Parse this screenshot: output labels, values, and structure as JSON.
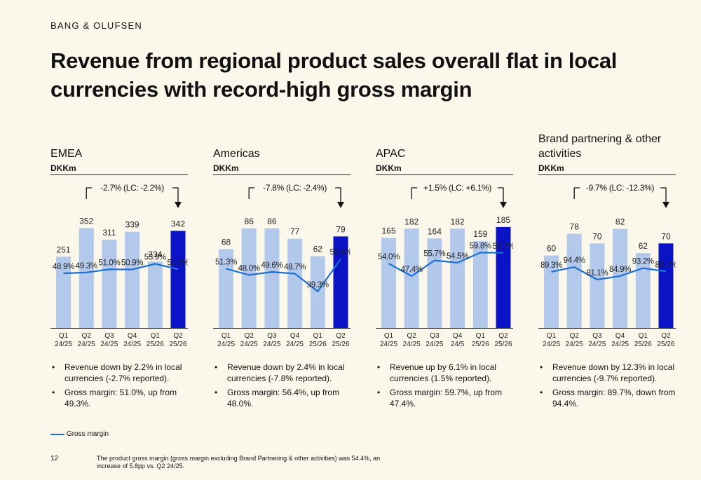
{
  "brand": "BANG & OLUFSEN",
  "title": "Revenue from regional product sales overall flat in local currencies with record-high gross margin",
  "colors": {
    "background": "#FBF7EA",
    "bar_light": "#B3C9EC",
    "bar_dark": "#0A14C4",
    "margin_line": "#1E6FD2"
  },
  "chart_data": [
    {
      "type": "bar",
      "title": "EMEA",
      "unit": "DKKm",
      "categories": [
        "Q1 24/25",
        "Q2 24/25",
        "Q3 24/25",
        "Q4 24/25",
        "Q1 25/26",
        "Q2 25/26"
      ],
      "series": [
        {
          "name": "Revenue",
          "values": [
            251,
            352,
            311,
            339,
            234,
            342
          ]
        },
        {
          "name": "Gross margin",
          "values": [
            48.9,
            49.3,
            51.0,
            50.9,
            53.9,
            51.0
          ]
        }
      ],
      "value_labels": [
        "251",
        "352",
        "311",
        "339",
        "234",
        "342"
      ],
      "margin_labels": [
        "48.9%",
        "49.3%",
        "51.0%",
        "50.9%",
        "53.9%",
        "51.0%"
      ],
      "growth_label": "-2.7% (LC: -2.2%)",
      "highlight_index": 5,
      "ylim": [
        0,
        400
      ],
      "margin_range": [
        20,
        80
      ],
      "bullets": [
        "Revenue down by 2.2% in local currencies (-2.7% reported).",
        "Gross margin: 51.0%, up from 49.3%."
      ]
    },
    {
      "type": "bar",
      "title": "Americas",
      "unit": "DKKm",
      "categories": [
        "Q1 24/25",
        "Q2 24/25",
        "Q3 24/25",
        "Q4 24/25",
        "Q1 25/26",
        "Q2 25/26"
      ],
      "series": [
        {
          "name": "Revenue",
          "values": [
            68,
            86,
            86,
            77,
            62,
            79
          ]
        },
        {
          "name": "Gross margin",
          "values": [
            51.3,
            48.0,
            49.6,
            48.7,
            39.3,
            56.4
          ]
        }
      ],
      "value_labels": [
        "68",
        "86",
        "86",
        "77",
        "62",
        "79"
      ],
      "margin_labels": [
        "51.3%",
        "48.0%",
        "49.6%",
        "48.7%",
        "39.3%",
        "56.4%"
      ],
      "growth_label": "-7.8% (LC: -2.4%)",
      "highlight_index": 5,
      "ylim": [
        0,
        98
      ],
      "margin_range": [
        20,
        80
      ],
      "bullets": [
        "Revenue down by 2.4% in local currencies (-7.8% reported).",
        "Gross margin: 56.4%, up from 48.0%."
      ]
    },
    {
      "type": "bar",
      "title": "APAC",
      "unit": "DKKm",
      "categories": [
        "Q1 24/25",
        "Q2 24/25",
        "Q3 24/25",
        "Q4 24/5",
        "Q1 25/26",
        "Q2 25/26"
      ],
      "series": [
        {
          "name": "Revenue",
          "values": [
            165,
            182,
            164,
            182,
            159,
            185
          ]
        },
        {
          "name": "Gross margin",
          "values": [
            54.0,
            47.4,
            55.7,
            54.5,
            59.8,
            59.7
          ]
        }
      ],
      "value_labels": [
        "165",
        "182",
        "164",
        "182",
        "159",
        "185"
      ],
      "margin_labels": [
        "54.0%",
        "47.4%",
        "55.7%",
        "54.5%",
        "59.8%",
        "59.7%"
      ],
      "growth_label": "+1.5% (LC: +6.1%)",
      "highlight_index": 5,
      "ylim": [
        0,
        208
      ],
      "margin_range": [
        20,
        80
      ],
      "bullets": [
        "Revenue up by 6.1% in local currencies (1.5% reported).",
        "Gross margin: 59.7%, up from 47.4%."
      ]
    },
    {
      "type": "bar",
      "title": "Brand partnering & other activities",
      "unit": "DKKm",
      "categories": [
        "Q1 24/25",
        "Q2 24/25",
        "Q3 24/25",
        "Q4 24/25",
        "Q1 25/26",
        "Q2 25/26"
      ],
      "series": [
        {
          "name": "Revenue",
          "values": [
            60,
            78,
            70,
            82,
            62,
            70
          ]
        },
        {
          "name": "Gross margin",
          "values": [
            89.3,
            94.4,
            81.1,
            84.9,
            93.2,
            89.7
          ]
        }
      ],
      "value_labels": [
        "60",
        "78",
        "70",
        "82",
        "62",
        "70"
      ],
      "margin_labels": [
        "89.3%",
        "94.4%",
        "81.1%",
        "84.9%",
        "93.2%",
        "89.7%"
      ],
      "growth_label": "-9.7% (LC: -12.3%)",
      "highlight_index": 5,
      "ylim": [
        0,
        94
      ],
      "margin_range": [
        30,
        150
      ],
      "bullets": [
        "Revenue down by 12.3% in local currencies (-9.7% reported).",
        "Gross margin: 89.7%, down from 94.4%."
      ]
    }
  ],
  "legend": {
    "label": "Gross margin"
  },
  "page_number": "12",
  "footnote": "The product gross margin (gross margin excluding Brand Partnering & other activities) was 54.4%, an increase of 5.8pp vs. Q2 24/25."
}
